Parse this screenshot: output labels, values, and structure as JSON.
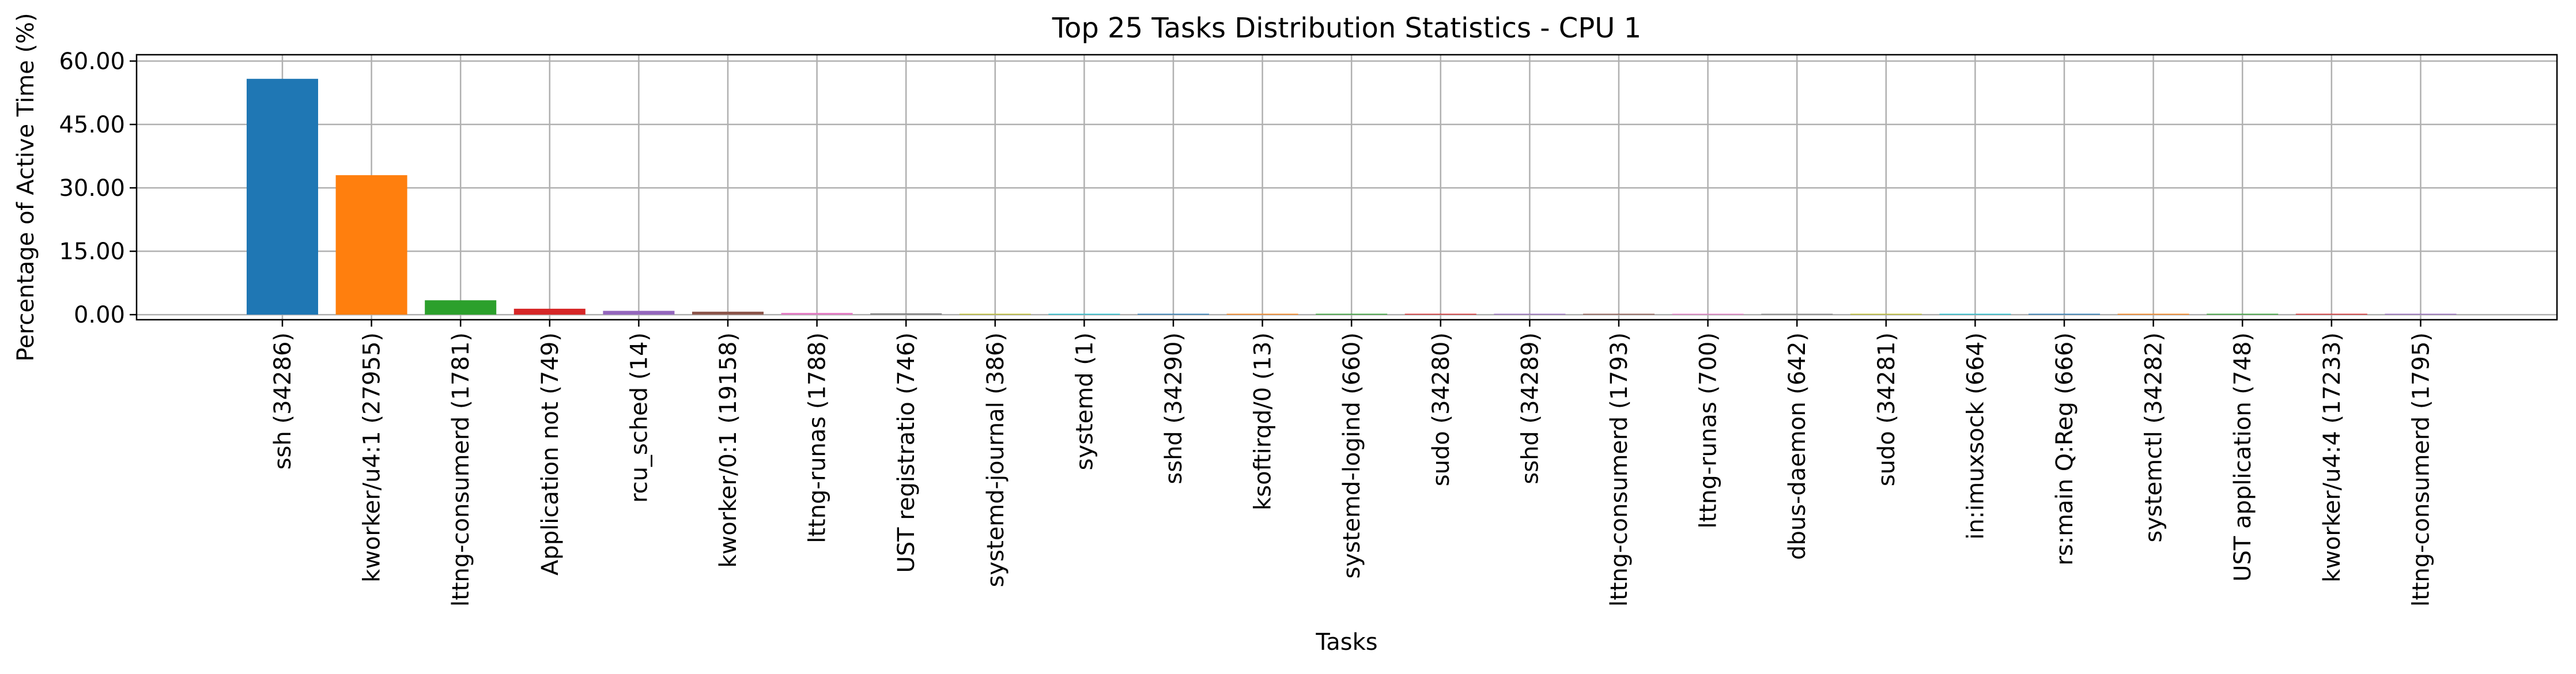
{
  "chart_data": {
    "type": "bar",
    "title": "Top 25 Tasks Distribution Statistics - CPU 1",
    "xlabel": "Tasks",
    "ylabel": "Percentage of Active Time (%)",
    "ylim": [
      -1.2,
      61.5
    ],
    "yticks": [
      "0.00",
      "15.00",
      "30.00",
      "45.00",
      "60.00"
    ],
    "ytick_values": [
      0,
      15,
      30,
      45,
      60
    ],
    "grid": true,
    "categories": [
      "ssh (34286)",
      "kworker/u4:1 (27955)",
      "lttng-consumerd (1781)",
      "Application not (749)",
      "rcu_sched (14)",
      "kworker/0:1 (19158)",
      "lttng-runas (1788)",
      "UST registratio (746)",
      "systemd-journal (386)",
      "systemd (1)",
      "sshd (34290)",
      "ksoftirqd/0 (13)",
      "systemd-logind (660)",
      "sudo (34280)",
      "sshd (34289)",
      "lttng-consumerd (1793)",
      "lttng-runas (700)",
      "dbus-daemon (642)",
      "sudo (34281)",
      "in:imuxsock (664)",
      "rs:main Q:Reg (666)",
      "systemctl (34282)",
      "UST application (748)",
      "kworker/u4:4 (17233)",
      "lttng-consumerd (1795)"
    ],
    "values": [
      55.8,
      33.0,
      3.4,
      1.4,
      0.9,
      0.7,
      0.4,
      0.3,
      0.2,
      0.15,
      0.12,
      0.1,
      0.08,
      0.07,
      0.06,
      0.05,
      0.04,
      0.03,
      0.02,
      0.02,
      0.02,
      0.01,
      0.01,
      0.01,
      0.01
    ],
    "colors": [
      "#1f77b4",
      "#ff7f0e",
      "#2ca02c",
      "#d62728",
      "#9467bd",
      "#8c564b",
      "#e377c2",
      "#7f7f7f",
      "#bcbd22",
      "#17becf"
    ]
  }
}
